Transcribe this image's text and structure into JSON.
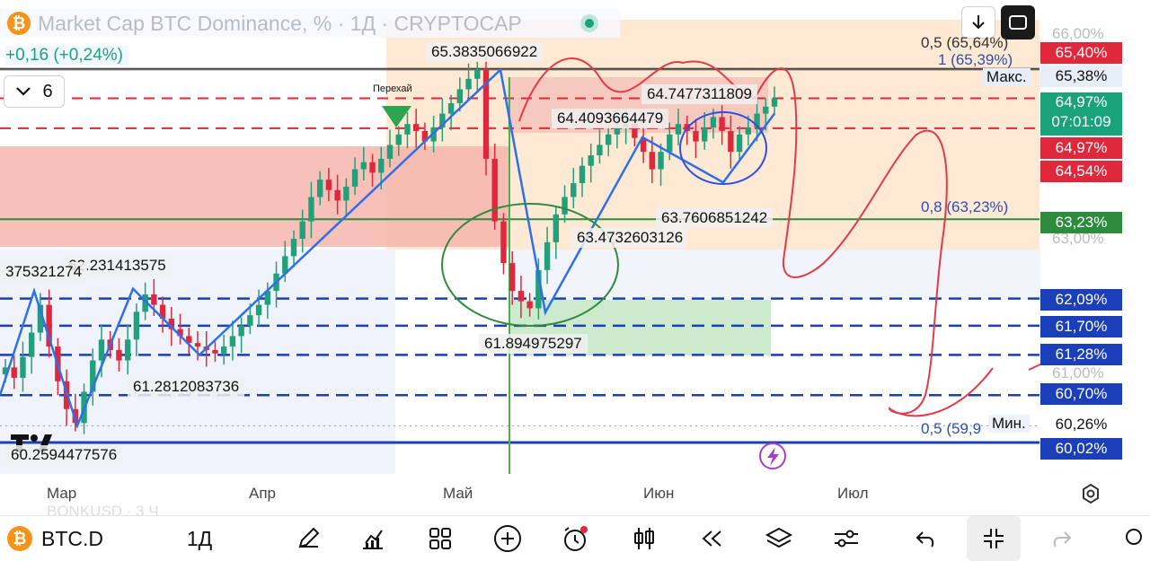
{
  "header": {
    "title": "Market Cap BTC Dominance, % · 1Д · CRYPTOCAP",
    "change": "+0,16 (+0,24%)",
    "collapse_count": "6",
    "download_icon": "download-icon",
    "fullscreen_icon": "fullscreen-icon"
  },
  "price_scale": {
    "badges": [
      {
        "label": "65,40%",
        "color": "#e0283c"
      },
      {
        "label": "65,38%",
        "color": "#e8eef8",
        "text_color": "#111"
      },
      {
        "label": "64,97%",
        "color": "#1aa37a"
      },
      {
        "label": "07:01:09",
        "color": "#1aa37a"
      },
      {
        "label": "64,97%",
        "color": "#e0283c"
      },
      {
        "label": "64,54%",
        "color": "#e0283c"
      },
      {
        "label": "63,23%",
        "color": "#2e8b3e"
      },
      {
        "label": "62,09%",
        "color": "#1b3fb8"
      },
      {
        "label": "61,70%",
        "color": "#1b3fb8"
      },
      {
        "label": "61,28%",
        "color": "#1b3fb8"
      },
      {
        "label": "60,70%",
        "color": "#1b3fb8"
      },
      {
        "label": "60,26%",
        "color": "#ffffff",
        "text_color": "#111"
      },
      {
        "label": "60,02%",
        "color": "#1b3fb8"
      }
    ],
    "ticks": [
      "66,00%",
      "63,00%",
      "61,00%"
    ],
    "max_label": "Макс.",
    "min_label": "Мин."
  },
  "fib_labels": [
    "0,5 (65,64%)",
    "1 (65,39%)",
    "0,8 (63,23%)",
    "0,5 (59,9"
  ],
  "pivots": [
    "65.3835066922",
    "64.7477311809",
    "64.4093664479",
    "63.7606851242",
    "63.4732603126",
    "62.231413575",
    "375321274",
    "61.894975297",
    "61.2812083736",
    "60.2594477576"
  ],
  "annotation": "Перехай",
  "months": [
    "Мар",
    "Апр",
    "Май",
    "Июн",
    "Июл"
  ],
  "watermark": "BONKUSD · 3 Ч",
  "toolbar": {
    "symbol": "BTC.D",
    "interval": "1Д",
    "tools": [
      "draw-icon",
      "indicators-icon",
      "layouts-icon",
      "add-icon",
      "alert-icon",
      "chart-type-icon",
      "replay-icon",
      "layers-icon",
      "settings-icon",
      "undo-icon",
      "compress-icon",
      "redo-icon"
    ]
  },
  "colors": {
    "up": "#22a07a",
    "down": "#e0283c",
    "zigzag": "#2f6fe8",
    "fib_zone": "#fde4cc",
    "red_zone": "#f5b1a8",
    "green_zone": "#c6e8c8"
  },
  "chart_data": {
    "type": "candlestick",
    "symbol": "BTC.D",
    "interval": "1Д",
    "x_months": [
      "Мар",
      "Апр",
      "Май",
      "Июн",
      "Июл"
    ],
    "ylim": [
      59.8,
      66.1
    ],
    "levels": [
      65.4,
      65.38,
      64.97,
      64.54,
      63.23,
      62.09,
      61.7,
      61.28,
      60.7,
      60.26,
      60.02
    ],
    "zigzag_pivots": [
      60.2594477576,
      62.231413575,
      61.2812083736,
      65.3835066922,
      61.894975297,
      64.4093664479,
      63.7606851242,
      64.7477311809
    ],
    "closes": [
      61.1,
      60.95,
      61.25,
      61.6,
      62.0,
      61.4,
      60.9,
      60.5,
      60.3,
      60.75,
      61.2,
      61.5,
      61.35,
      61.2,
      61.5,
      61.9,
      62.15,
      62.0,
      61.8,
      61.65,
      61.55,
      61.45,
      61.4,
      61.35,
      61.3,
      61.4,
      61.55,
      61.7,
      61.85,
      62.0,
      62.2,
      62.45,
      62.7,
      62.95,
      63.2,
      63.55,
      63.8,
      63.65,
      63.5,
      63.7,
      63.95,
      64.05,
      63.9,
      64.1,
      64.3,
      64.45,
      64.6,
      64.5,
      64.35,
      64.55,
      64.75,
      64.9,
      65.1,
      65.25,
      65.38,
      64.1,
      63.2,
      62.6,
      62.2,
      62.05,
      61.95,
      62.5,
      62.9,
      63.3,
      63.55,
      63.75,
      64.0,
      64.15,
      64.3,
      64.45,
      64.55,
      64.6,
      64.4,
      64.2,
      63.95,
      64.2,
      64.45,
      64.6,
      64.5,
      64.35,
      64.55,
      64.7,
      64.5,
      64.2,
      64.45,
      64.55,
      64.75,
      64.85,
      64.97
    ]
  }
}
